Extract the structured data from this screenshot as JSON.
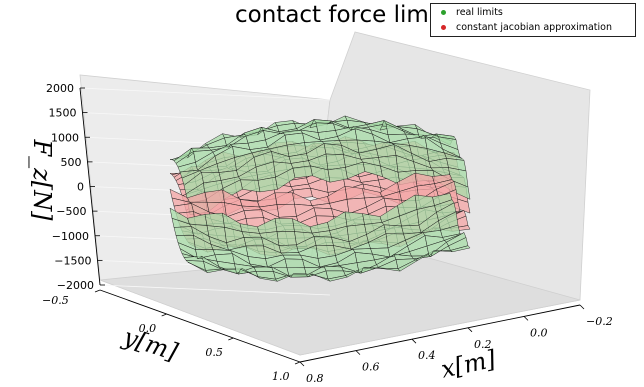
{
  "chart_data": {
    "type": "surface3d",
    "title": "contact force limits",
    "title_math": "F",
    "title_math_sub": "z",
    "xlabel": "x[m]",
    "ylabel": "y[m]",
    "zlabel": "F_z[N]",
    "x_ticks": [
      "0.8",
      "0.6",
      "0.4",
      "0.2",
      "0.0",
      "−0.2"
    ],
    "y_ticks": [
      "−0.5",
      "0.0",
      "0.5",
      "1.0"
    ],
    "z_ticks": [
      "2000",
      "1500",
      "1000",
      "500",
      "0",
      "−500",
      "−1000",
      "−1500",
      "−2000"
    ],
    "xlim": [
      -0.2,
      0.8
    ],
    "ylim": [
      -0.5,
      1.0
    ],
    "zlim": [
      -2000,
      2000
    ],
    "grid": true,
    "legend_position": "top-right",
    "series": [
      {
        "name": "real limits",
        "color": "#2ca02c",
        "surface_color": "#a8dba8",
        "upper_level": 1300,
        "lower_level": -1700
      },
      {
        "name": "constant jacobian approximation",
        "color": "#d62728",
        "surface_color": "#f4a6a6",
        "upper_level": 350,
        "lower_level": -800
      }
    ]
  }
}
